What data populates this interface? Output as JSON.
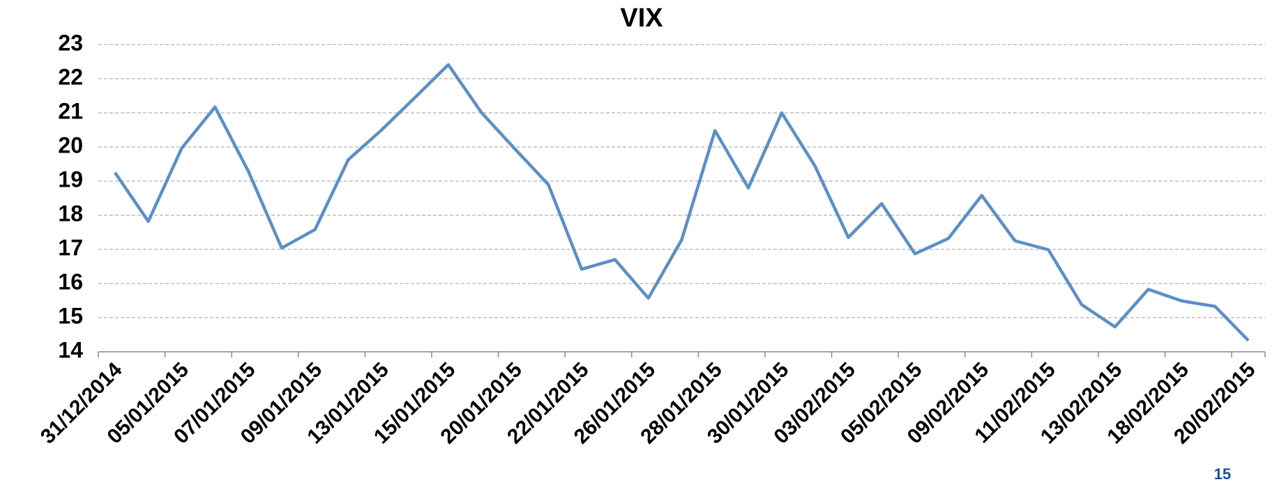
{
  "chart_data": {
    "type": "line",
    "title": "VIX",
    "categories": [
      "31/12/2014",
      null,
      "05/01/2015",
      null,
      "07/01/2015",
      null,
      "09/01/2015",
      null,
      "13/01/2015",
      null,
      "15/01/2015",
      null,
      "20/01/2015",
      null,
      "22/01/2015",
      null,
      "26/01/2015",
      null,
      "28/01/2015",
      null,
      "30/01/2015",
      null,
      "03/02/2015",
      null,
      "05/02/2015",
      null,
      "09/02/2015",
      null,
      "11/02/2015",
      null,
      "13/02/2015",
      null,
      "18/02/2015",
      null,
      "20/02/2015"
    ],
    "series": [
      {
        "name": "VIX",
        "color": "#5b8fc7",
        "values": [
          19.25,
          17.82,
          19.96,
          21.17,
          19.29,
          17.04,
          17.58,
          19.63,
          20.5,
          21.45,
          22.41,
          21.0,
          19.94,
          18.9,
          16.42,
          16.7,
          15.57,
          17.28,
          20.48,
          18.8,
          21.0,
          19.44,
          17.35,
          18.34,
          16.87,
          17.32,
          18.58,
          17.25,
          16.99,
          15.38,
          14.73,
          15.83,
          15.49,
          15.33,
          14.33
        ]
      }
    ],
    "ylim": [
      14,
      23
    ],
    "yticks": [
      14,
      15,
      16,
      17,
      18,
      19,
      20,
      21,
      22,
      23
    ],
    "grid": true,
    "page_number": "15"
  }
}
